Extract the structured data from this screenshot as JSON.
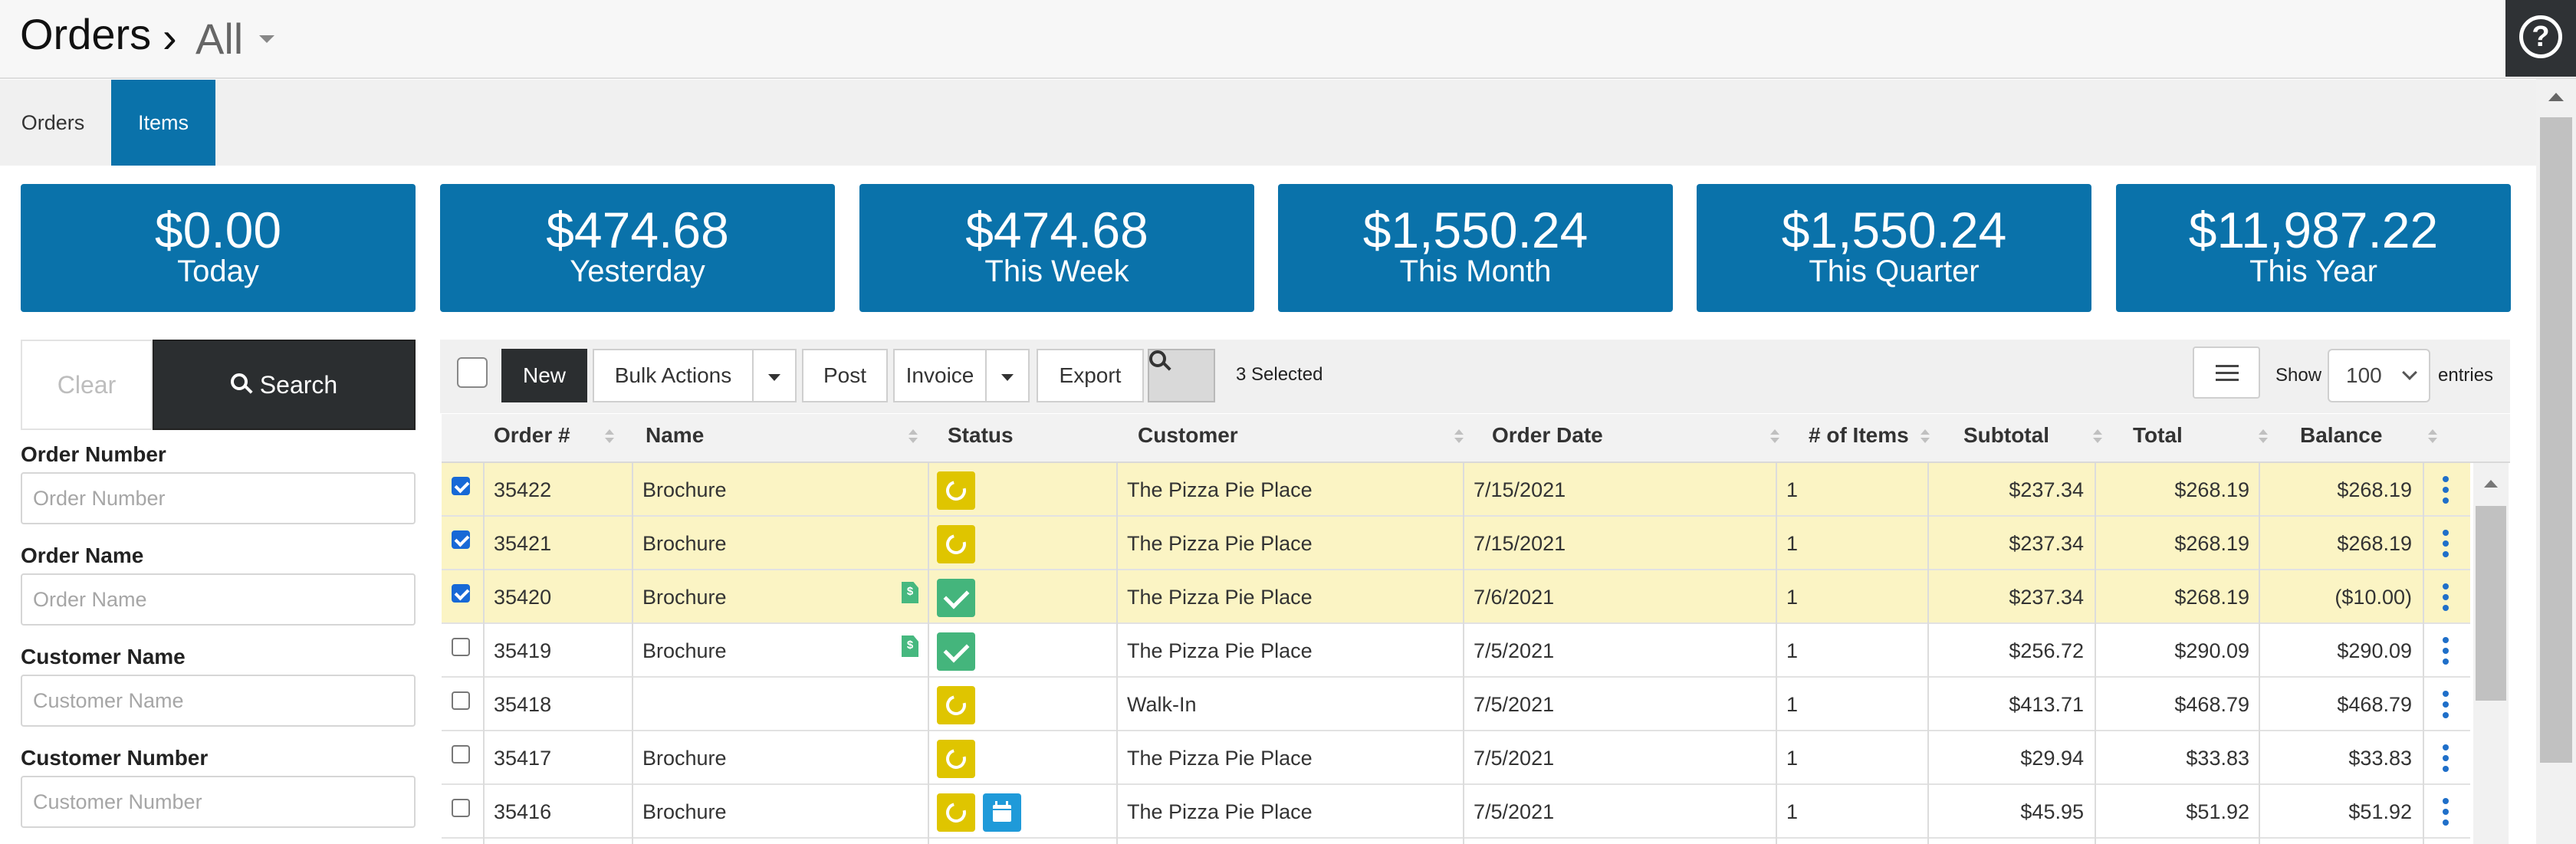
{
  "header": {
    "title": "Orders",
    "separator": "›",
    "filter_label": "All",
    "help_label": "?"
  },
  "tabs": [
    {
      "label": "Orders",
      "active": false
    },
    {
      "label": "Items",
      "active": true
    }
  ],
  "stats": [
    {
      "amount": "$0.00",
      "label": "Today"
    },
    {
      "amount": "$474.68",
      "label": "Yesterday"
    },
    {
      "amount": "$474.68",
      "label": "This Week"
    },
    {
      "amount": "$1,550.24",
      "label": "This Month"
    },
    {
      "amount": "$1,550.24",
      "label": "This Quarter"
    },
    {
      "amount": "$11,987.22",
      "label": "This Year"
    }
  ],
  "filters": {
    "clear_label": "Clear",
    "search_label": "Search",
    "fields": [
      {
        "label": "Order Number",
        "placeholder": "Order Number"
      },
      {
        "label": "Order Name",
        "placeholder": "Order Name"
      },
      {
        "label": "Customer Name",
        "placeholder": "Customer Name"
      },
      {
        "label": "Customer Number",
        "placeholder": "Customer Number"
      }
    ]
  },
  "toolbar": {
    "new_label": "New",
    "bulk_label": "Bulk Actions",
    "post_label": "Post",
    "invoice_label": "Invoice",
    "export_label": "Export",
    "selected_text": "3 Selected",
    "show_label": "Show",
    "show_value": "100",
    "entries_label": "entries"
  },
  "table": {
    "columns": [
      "Order #",
      "Name",
      "Status",
      "Customer",
      "Order Date",
      "# of Items",
      "Subtotal",
      "Total",
      "Balance"
    ],
    "rows": [
      {
        "checked": true,
        "order": "35422",
        "name": "Brochure",
        "doc": false,
        "status": [
          "pending"
        ],
        "customer": "The Pizza Pie Place",
        "date": "7/15/2021",
        "items": "1",
        "subtotal": "$237.34",
        "total": "$268.19",
        "balance": "$268.19"
      },
      {
        "checked": true,
        "order": "35421",
        "name": "Brochure",
        "doc": false,
        "status": [
          "pending"
        ],
        "customer": "The Pizza Pie Place",
        "date": "7/15/2021",
        "items": "1",
        "subtotal": "$237.34",
        "total": "$268.19",
        "balance": "$268.19"
      },
      {
        "checked": true,
        "order": "35420",
        "name": "Brochure",
        "doc": true,
        "status": [
          "complete"
        ],
        "customer": "The Pizza Pie Place",
        "date": "7/6/2021",
        "items": "1",
        "subtotal": "$237.34",
        "total": "$268.19",
        "balance": "($10.00)"
      },
      {
        "checked": false,
        "order": "35419",
        "name": "Brochure",
        "doc": true,
        "status": [
          "complete"
        ],
        "customer": "The Pizza Pie Place",
        "date": "7/5/2021",
        "items": "1",
        "subtotal": "$256.72",
        "total": "$290.09",
        "balance": "$290.09"
      },
      {
        "checked": false,
        "order": "35418",
        "name": "",
        "doc": false,
        "status": [
          "pending"
        ],
        "customer": "Walk-In",
        "date": "7/5/2021",
        "items": "1",
        "subtotal": "$413.71",
        "total": "$468.79",
        "balance": "$468.79"
      },
      {
        "checked": false,
        "order": "35417",
        "name": "Brochure",
        "doc": false,
        "status": [
          "pending"
        ],
        "customer": "The Pizza Pie Place",
        "date": "7/5/2021",
        "items": "1",
        "subtotal": "$29.94",
        "total": "$33.83",
        "balance": "$33.83"
      },
      {
        "checked": false,
        "order": "35416",
        "name": "Brochure",
        "doc": false,
        "status": [
          "pending",
          "scheduled"
        ],
        "customer": "The Pizza Pie Place",
        "date": "7/5/2021",
        "items": "1",
        "subtotal": "$45.95",
        "total": "$51.92",
        "balance": "$51.92"
      }
    ]
  },
  "colors": {
    "accent": "#0a72aa",
    "selected_row": "#fbf4c4",
    "status_pending": "#dfc500",
    "status_complete": "#44b57c",
    "status_scheduled": "#1f9ad9"
  }
}
